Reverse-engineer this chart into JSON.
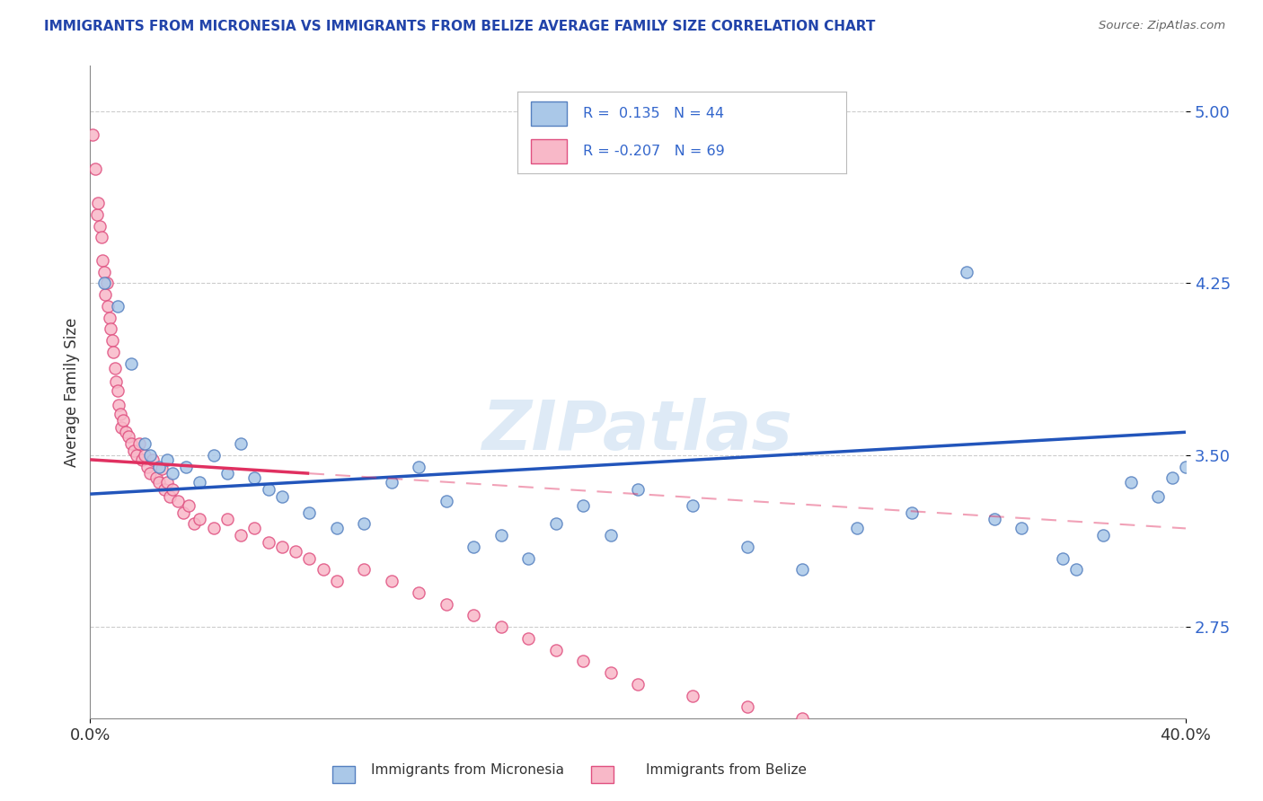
{
  "title": "IMMIGRANTS FROM MICRONESIA VS IMMIGRANTS FROM BELIZE AVERAGE FAMILY SIZE CORRELATION CHART",
  "source": "Source: ZipAtlas.com",
  "ylabel": "Average Family Size",
  "y_ticks": [
    2.75,
    3.5,
    4.25,
    5.0
  ],
  "x_min": 0.0,
  "x_max": 40.0,
  "y_min": 2.35,
  "y_max": 5.2,
  "series1_name": "Immigrants from Micronesia",
  "series1_color": "#aac8e8",
  "series1_edge_color": "#5580c0",
  "series1_line_color": "#2255bb",
  "series1_R": 0.135,
  "series1_N": 44,
  "series2_name": "Immigrants from Belize",
  "series2_color": "#f8b8c8",
  "series2_edge_color": "#e05080",
  "series2_line_color": "#e03060",
  "series2_R": -0.207,
  "series2_N": 69,
  "watermark": "ZIPatlas",
  "background_color": "#ffffff",
  "grid_color": "#cccccc",
  "title_color": "#2244aa",
  "label_color": "#3366cc",
  "scatter1_x": [
    0.5,
    1.0,
    1.5,
    2.0,
    2.2,
    2.5,
    2.8,
    3.0,
    3.5,
    4.0,
    4.5,
    5.0,
    5.5,
    6.0,
    6.5,
    7.0,
    8.0,
    9.0,
    10.0,
    11.0,
    12.0,
    13.0,
    14.0,
    15.0,
    16.0,
    17.0,
    18.0,
    19.0,
    20.0,
    22.0,
    24.0,
    26.0,
    28.0,
    30.0,
    32.0,
    33.0,
    34.0,
    35.5,
    36.0,
    37.0,
    38.0,
    39.0,
    39.5,
    40.0
  ],
  "scatter1_y": [
    4.25,
    4.15,
    3.9,
    3.55,
    3.5,
    3.45,
    3.48,
    3.42,
    3.45,
    3.38,
    3.5,
    3.42,
    3.55,
    3.4,
    3.35,
    3.32,
    3.25,
    3.18,
    3.2,
    3.38,
    3.45,
    3.3,
    3.1,
    3.15,
    3.05,
    3.2,
    3.28,
    3.15,
    3.35,
    3.28,
    3.1,
    3.0,
    3.18,
    3.25,
    4.3,
    3.22,
    3.18,
    3.05,
    3.0,
    3.15,
    3.38,
    3.32,
    3.4,
    3.45
  ],
  "scatter2_x": [
    0.1,
    0.2,
    0.25,
    0.3,
    0.35,
    0.4,
    0.45,
    0.5,
    0.55,
    0.6,
    0.65,
    0.7,
    0.75,
    0.8,
    0.85,
    0.9,
    0.95,
    1.0,
    1.05,
    1.1,
    1.15,
    1.2,
    1.3,
    1.4,
    1.5,
    1.6,
    1.7,
    1.8,
    1.9,
    2.0,
    2.1,
    2.2,
    2.3,
    2.4,
    2.5,
    2.6,
    2.7,
    2.8,
    2.9,
    3.0,
    3.2,
    3.4,
    3.6,
    3.8,
    4.0,
    4.5,
    5.0,
    5.5,
    6.0,
    6.5,
    7.0,
    7.5,
    8.0,
    8.5,
    9.0,
    10.0,
    11.0,
    12.0,
    13.0,
    14.0,
    15.0,
    16.0,
    17.0,
    18.0,
    19.0,
    20.0,
    22.0,
    24.0,
    26.0
  ],
  "scatter2_y": [
    4.9,
    4.75,
    4.55,
    4.6,
    4.5,
    4.45,
    4.35,
    4.3,
    4.2,
    4.25,
    4.15,
    4.1,
    4.05,
    4.0,
    3.95,
    3.88,
    3.82,
    3.78,
    3.72,
    3.68,
    3.62,
    3.65,
    3.6,
    3.58,
    3.55,
    3.52,
    3.5,
    3.55,
    3.48,
    3.5,
    3.45,
    3.42,
    3.48,
    3.4,
    3.38,
    3.44,
    3.35,
    3.38,
    3.32,
    3.35,
    3.3,
    3.25,
    3.28,
    3.2,
    3.22,
    3.18,
    3.22,
    3.15,
    3.18,
    3.12,
    3.1,
    3.08,
    3.05,
    3.0,
    2.95,
    3.0,
    2.95,
    2.9,
    2.85,
    2.8,
    2.75,
    2.7,
    2.65,
    2.6,
    2.55,
    2.5,
    2.45,
    2.4,
    2.35
  ],
  "pink_solid_x_max": 8.0,
  "trendline1_x0": 0.0,
  "trendline1_x1": 40.0,
  "trendline1_y0": 3.33,
  "trendline1_y1": 3.6,
  "trendline2_x0": 0.0,
  "trendline2_x1": 40.0,
  "trendline2_y0": 3.48,
  "trendline2_y1": 3.18
}
